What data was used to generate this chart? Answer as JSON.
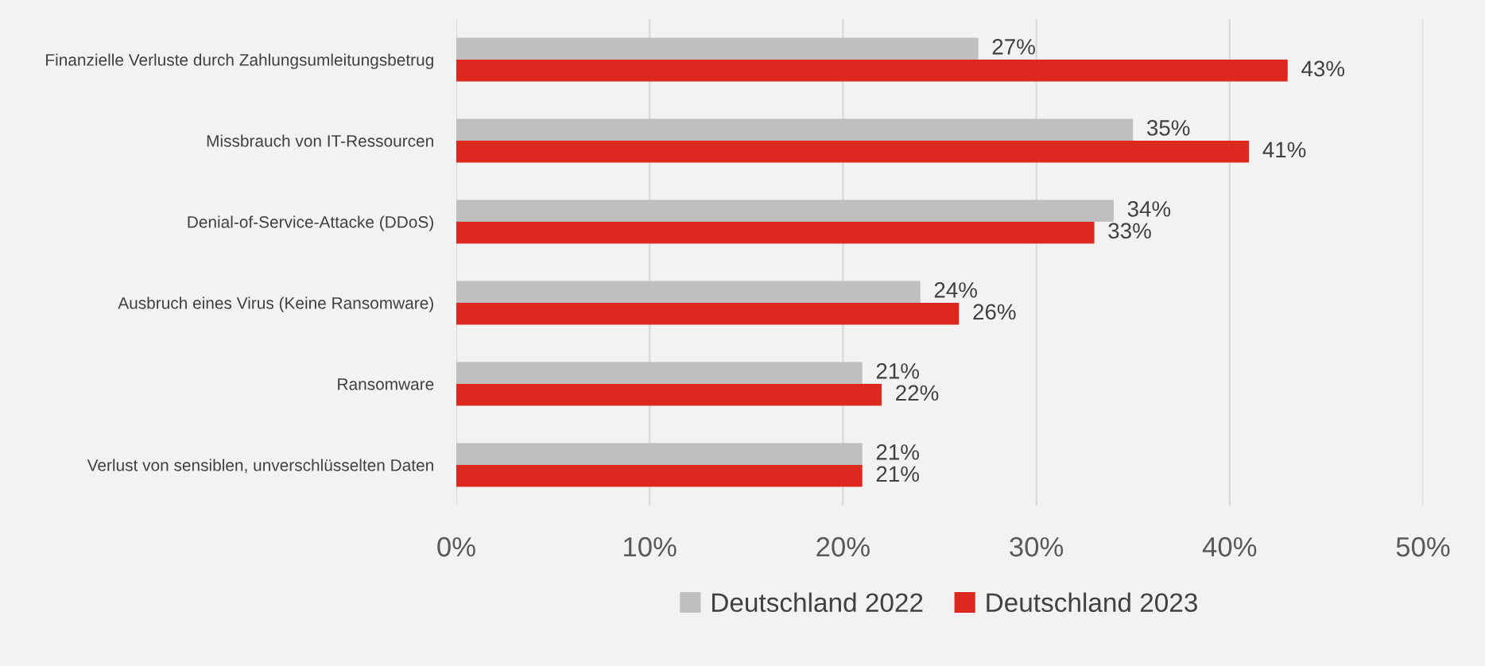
{
  "chart_data": {
    "type": "bar",
    "orientation": "horizontal",
    "categories": [
      "Finanzielle Verluste durch Zahlungsumleitungsbetrug",
      "Missbrauch von IT-Ressourcen",
      "Denial-of-Service-Attacke (DDoS)",
      "Ausbruch eines Virus (Keine Ransomware)",
      "Ransomware",
      "Verlust von sensiblen, unverschlüsselten Daten"
    ],
    "series": [
      {
        "name": "Deutschland 2022",
        "color": "#bfbfbf",
        "values": [
          27,
          35,
          34,
          24,
          21,
          21
        ],
        "value_labels": [
          "27%",
          "35%",
          "34%",
          "24%",
          "21%",
          "21%"
        ]
      },
      {
        "name": "Deutschland 2023",
        "color": "#dc281e",
        "values": [
          43,
          41,
          33,
          26,
          22,
          21
        ],
        "value_labels": [
          "43%",
          "41%",
          "33%",
          "26%",
          "22%",
          "21%"
        ]
      }
    ],
    "xlim": [
      0,
      50
    ],
    "xticks": [
      {
        "value": 0,
        "label": "0%"
      },
      {
        "value": 10,
        "label": "10%"
      },
      {
        "value": 20,
        "label": "20%"
      },
      {
        "value": 30,
        "label": "30%"
      },
      {
        "value": 40,
        "label": "40%"
      },
      {
        "value": 50,
        "label": "50%"
      }
    ],
    "grid": "x",
    "legend": "bottom"
  }
}
